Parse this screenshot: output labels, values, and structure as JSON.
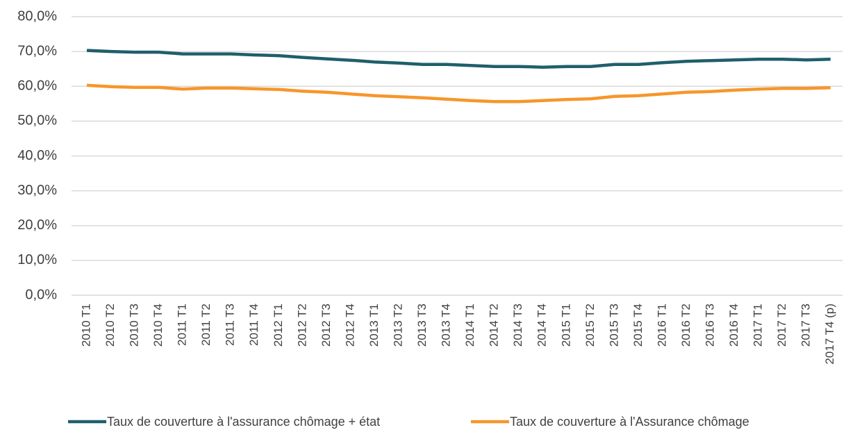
{
  "chart_data": {
    "type": "line",
    "categories": [
      "2010 T1",
      "2010 T2",
      "2010 T3",
      "2010 T4",
      "2011 T1",
      "2011 T2",
      "2011 T3",
      "2011 T4",
      "2012 T1",
      "2012 T2",
      "2012 T3",
      "2012 T4",
      "2013 T1",
      "2013 T2",
      "2013 T3",
      "2013 T4",
      "2014 T1",
      "2014 T2",
      "2014 T3",
      "2014 T4",
      "2015 T1",
      "2015 T2",
      "2015 T3",
      "2015 T4",
      "2016 T1",
      "2016 T2",
      "2016 T3",
      "2016 T4",
      "2017 T1",
      "2017 T2",
      "2017 T3",
      "2017  T4 (p)"
    ],
    "series": [
      {
        "name": "Taux de couverture à l'assurance chômage + état",
        "color": "#1f5f6b",
        "values": [
          70.3,
          70.0,
          69.8,
          69.8,
          69.3,
          69.3,
          69.3,
          69.0,
          68.8,
          68.3,
          67.9,
          67.5,
          67.0,
          66.7,
          66.3,
          66.3,
          66.0,
          65.7,
          65.7,
          65.5,
          65.7,
          65.7,
          66.3,
          66.3,
          66.8,
          67.2,
          67.4,
          67.6,
          67.8,
          67.8,
          67.6,
          67.8
        ]
      },
      {
        "name": "Taux de couverture à l'Assurance chômage",
        "color": "#f7962b",
        "values": [
          60.3,
          59.9,
          59.7,
          59.7,
          59.2,
          59.5,
          59.5,
          59.3,
          59.1,
          58.6,
          58.3,
          57.8,
          57.3,
          57.0,
          56.7,
          56.3,
          55.9,
          55.6,
          55.6,
          55.9,
          56.2,
          56.4,
          57.1,
          57.3,
          57.8,
          58.3,
          58.5,
          58.9,
          59.2,
          59.4,
          59.4,
          59.6
        ]
      }
    ],
    "ylim": [
      0,
      80
    ],
    "yticks": [
      {
        "value": 0,
        "label": "0,0%"
      },
      {
        "value": 10,
        "label": "10,0%"
      },
      {
        "value": 20,
        "label": "20,0%"
      },
      {
        "value": 30,
        "label": "30,0%"
      },
      {
        "value": 40,
        "label": "40,0%"
      },
      {
        "value": 50,
        "label": "50,0%"
      },
      {
        "value": 60,
        "label": "60,0%"
      },
      {
        "value": 70,
        "label": "70,0%"
      },
      {
        "value": 80,
        "label": "80,0%"
      }
    ],
    "grid": true,
    "legend": "bottom"
  }
}
